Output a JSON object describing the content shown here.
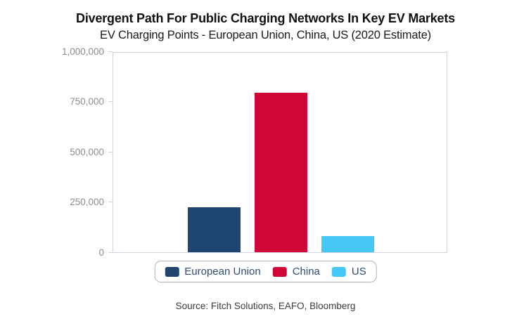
{
  "chart_data": {
    "type": "bar",
    "title": "Divergent Path For Public Charging Networks In Key EV Markets",
    "subtitle": "EV Charging Points - European Union, China, US (2020 Estimate)",
    "categories": [
      "European Union",
      "China",
      "US"
    ],
    "series": [
      {
        "name": "European Union",
        "value": 225000,
        "color": "#1f4571"
      },
      {
        "name": "China",
        "value": 795000,
        "color": "#d00637"
      },
      {
        "name": "US",
        "value": 82000,
        "color": "#45c8f5"
      }
    ],
    "ylim": [
      0,
      1000000
    ],
    "yticks": [
      {
        "value": 0,
        "label": "0"
      },
      {
        "value": 250000,
        "label": "250,000"
      },
      {
        "value": 500000,
        "label": "500,000"
      },
      {
        "value": 750000,
        "label": "750,000"
      },
      {
        "value": 1000000,
        "label": "1,000,000"
      }
    ],
    "grid": false,
    "legend_position": "bottom",
    "source": "Source: Fitch Solutions, EAFO, Bloomberg"
  },
  "colors": {
    "axis_line": "#ccd4de",
    "tick_label": "#8c8c8c",
    "legend_text": "#2e4d74",
    "legend_border": "#b3b3b3",
    "title_text": "#111111",
    "source_text": "#3c3c3c"
  }
}
